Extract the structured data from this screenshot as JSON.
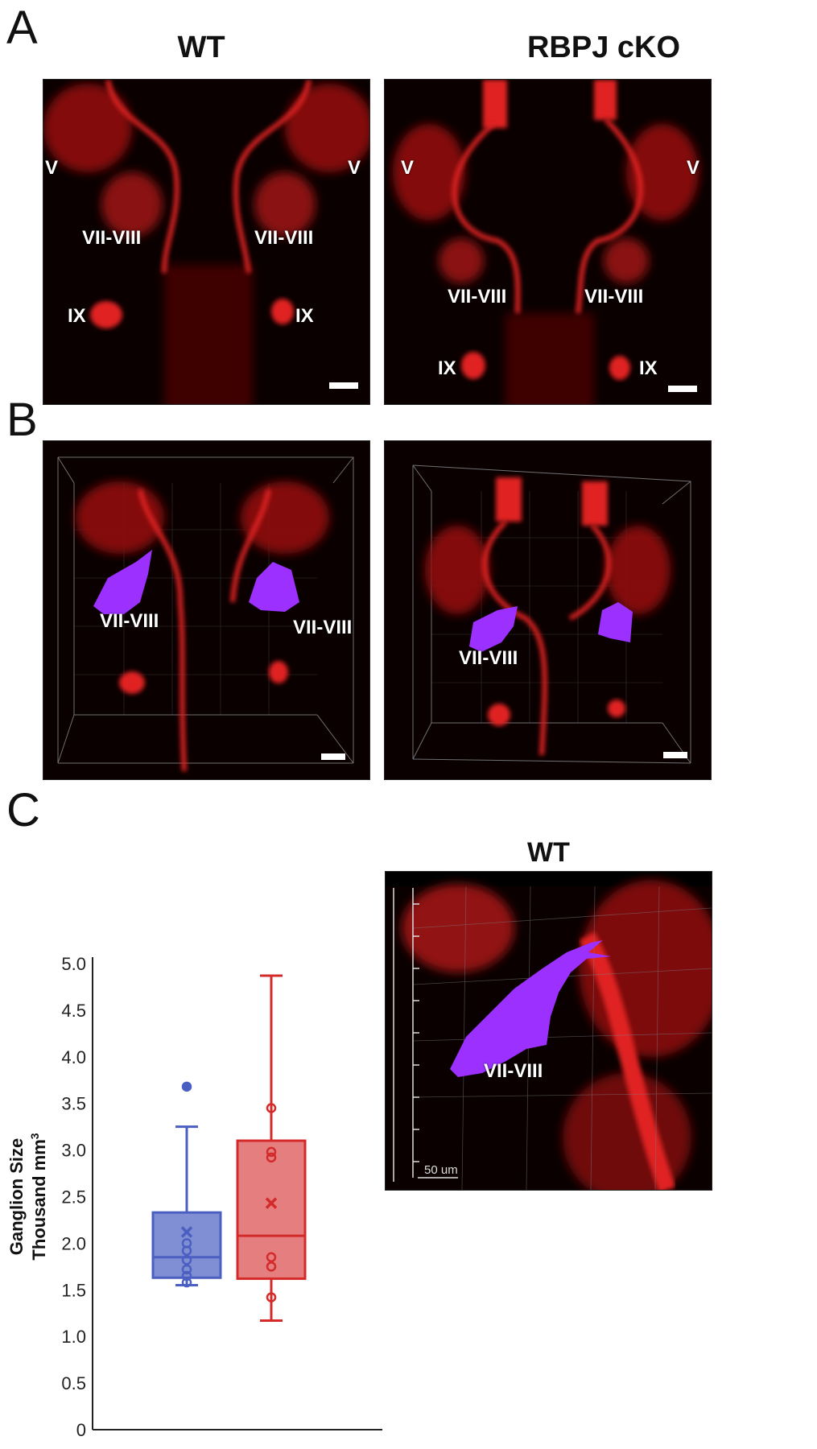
{
  "panels": {
    "a": {
      "letter": "A",
      "titles": [
        "WT",
        "RBPJ cKO"
      ],
      "labels": {
        "v": "V",
        "vii_viii": "VII-VIII",
        "ix": "IX"
      }
    },
    "b": {
      "letter": "B",
      "label": "VII-VIII"
    },
    "c": {
      "letter": "C",
      "inset_title": "WT",
      "inset_label": "VII-VIII",
      "inset_scale_text": "50 um"
    }
  },
  "colors": {
    "stain_red": "#e01e1e",
    "ganglion_purple": "#9b30ff",
    "wt_box": "#4a5fc1",
    "cko_box": "#d42a2a"
  },
  "chart_data": {
    "type": "box",
    "ylabel": "Ganglion Size",
    "ylabel_line2": "Thousand mm",
    "ylabel_sup": "3",
    "ylim": [
      0,
      5.0
    ],
    "yticks": [
      "0",
      "0.5",
      "1.0",
      "1.5",
      "2.0",
      "2.5",
      "3.0",
      "3.5",
      "4.0",
      "4.5",
      "5.0"
    ],
    "series": [
      {
        "color": "#4a5fc1",
        "min": 1.55,
        "q1": 1.63,
        "median": 1.85,
        "q3": 2.33,
        "max": 3.25,
        "mean": 2.12,
        "points": [
          1.58,
          1.65,
          1.72,
          1.82,
          1.92,
          2.0,
          3.68
        ],
        "outliers": [
          3.68
        ]
      },
      {
        "color": "#d42a2a",
        "min": 1.17,
        "q1": 1.62,
        "median": 2.08,
        "q3": 3.1,
        "max": 4.87,
        "mean": 2.43,
        "points": [
          1.42,
          1.75,
          1.85,
          2.92,
          2.98,
          3.45
        ]
      }
    ]
  }
}
